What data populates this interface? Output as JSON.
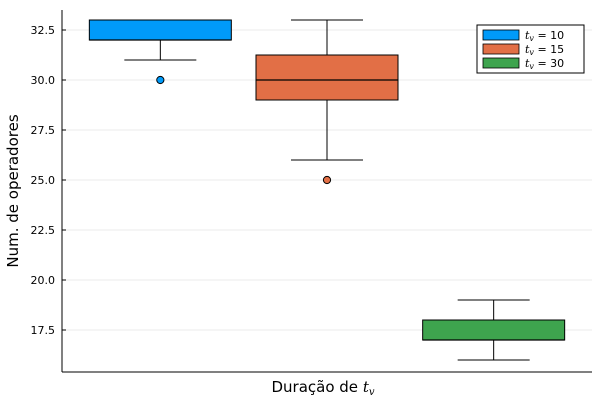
{
  "chart_data": {
    "type": "box",
    "xlabel": "Duração de",
    "xlabel_var": "t",
    "xlabel_var_sub": "v",
    "ylabel": "Num. de operadores",
    "ylim": [
      15.4,
      33.5
    ],
    "yticks": [
      "17.5",
      "20.0",
      "22.5",
      "25.0",
      "27.5",
      "30.0",
      "32.5"
    ],
    "grid": true,
    "legend_position": "top-right",
    "series": [
      {
        "name": "t_v = 10",
        "legend_var": "t",
        "legend_sub": "v",
        "legend_value": " = 10",
        "color": "#009AF9",
        "whisker_low": 31,
        "q1": 32,
        "median": 32,
        "q3": 33,
        "whisker_high": 33,
        "outliers": [
          30
        ]
      },
      {
        "name": "t_v = 15",
        "legend_var": "t",
        "legend_sub": "v",
        "legend_value": " = 15",
        "color": "#E26F46",
        "whisker_low": 26,
        "q1": 29,
        "median": 30,
        "q3": 31.25,
        "whisker_high": 33,
        "outliers": [
          25
        ]
      },
      {
        "name": "t_v = 30",
        "legend_var": "t",
        "legend_sub": "v",
        "legend_value": " = 30",
        "color": "#3EA44E",
        "whisker_low": 16,
        "q1": 17,
        "median": 17,
        "q3": 18,
        "whisker_high": 19,
        "outliers": []
      }
    ]
  }
}
